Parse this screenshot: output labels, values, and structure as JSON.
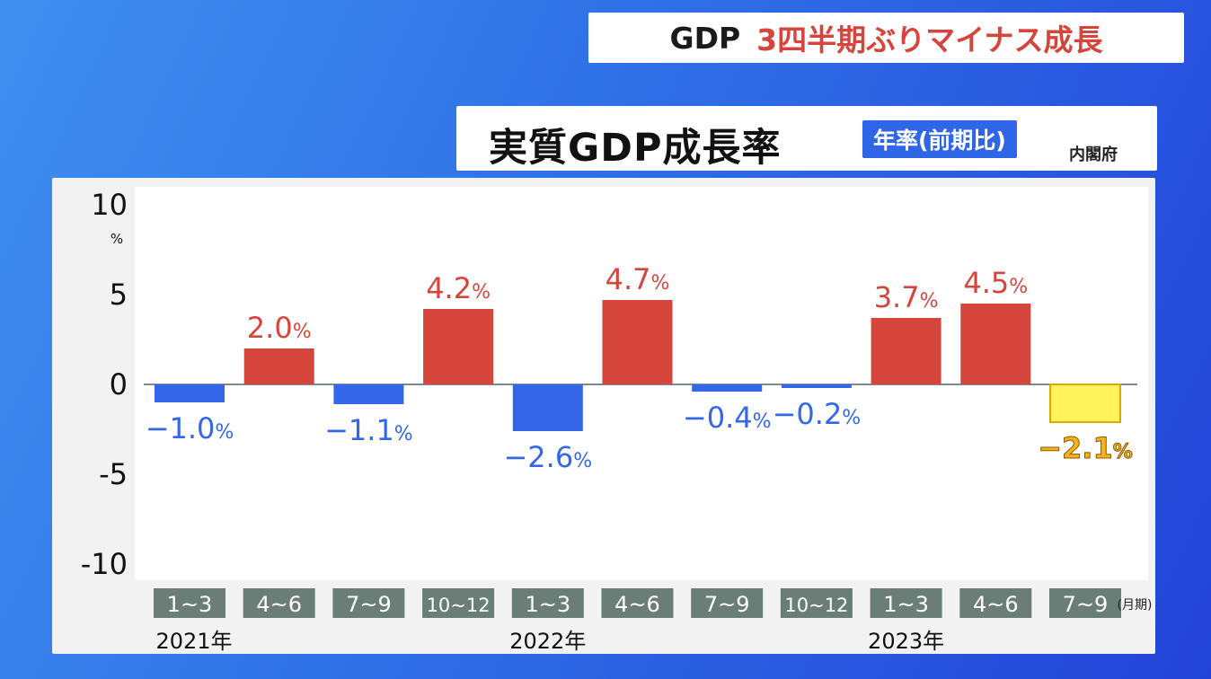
{
  "banner": {
    "prefix": "GDP",
    "headline": "3四半期ぶりマイナス成長"
  },
  "header": {
    "title": "実質GDP成長率",
    "badge": "年率(前期比)",
    "source": "内閣府"
  },
  "colors": {
    "positive": "#d6453c",
    "negative": "#3366e8",
    "highlight_fill": "#fff35c",
    "highlight_label": "#f5b21a",
    "tick_bg": "#6a7d77"
  },
  "chart_data": {
    "type": "bar",
    "y_ticks": [
      "10",
      "5",
      "0",
      "-5",
      "-10"
    ],
    "y_unit": "%",
    "ylim": [
      -10,
      10
    ],
    "categories": [
      "1~3",
      "4~6",
      "7~9",
      "10~12",
      "1~3",
      "4~6",
      "7~9",
      "10~12",
      "1~3",
      "4~6",
      "7~9"
    ],
    "x_unit": "(月期)",
    "years": [
      {
        "label": "2021年",
        "start_index": 0
      },
      {
        "label": "2022年",
        "start_index": 4
      },
      {
        "label": "2023年",
        "start_index": 8
      }
    ],
    "values": [
      -1.0,
      2.0,
      -1.1,
      4.2,
      -2.6,
      4.7,
      -0.4,
      -0.2,
      3.7,
      4.5,
      -2.1
    ],
    "value_labels": [
      "−1.0",
      "2.0",
      "−1.1",
      "4.2",
      "−2.6",
      "4.7",
      "−0.4",
      "−0.2",
      "3.7",
      "4.5",
      "−2.1"
    ],
    "label_unit": "%",
    "highlight_index": 10
  }
}
